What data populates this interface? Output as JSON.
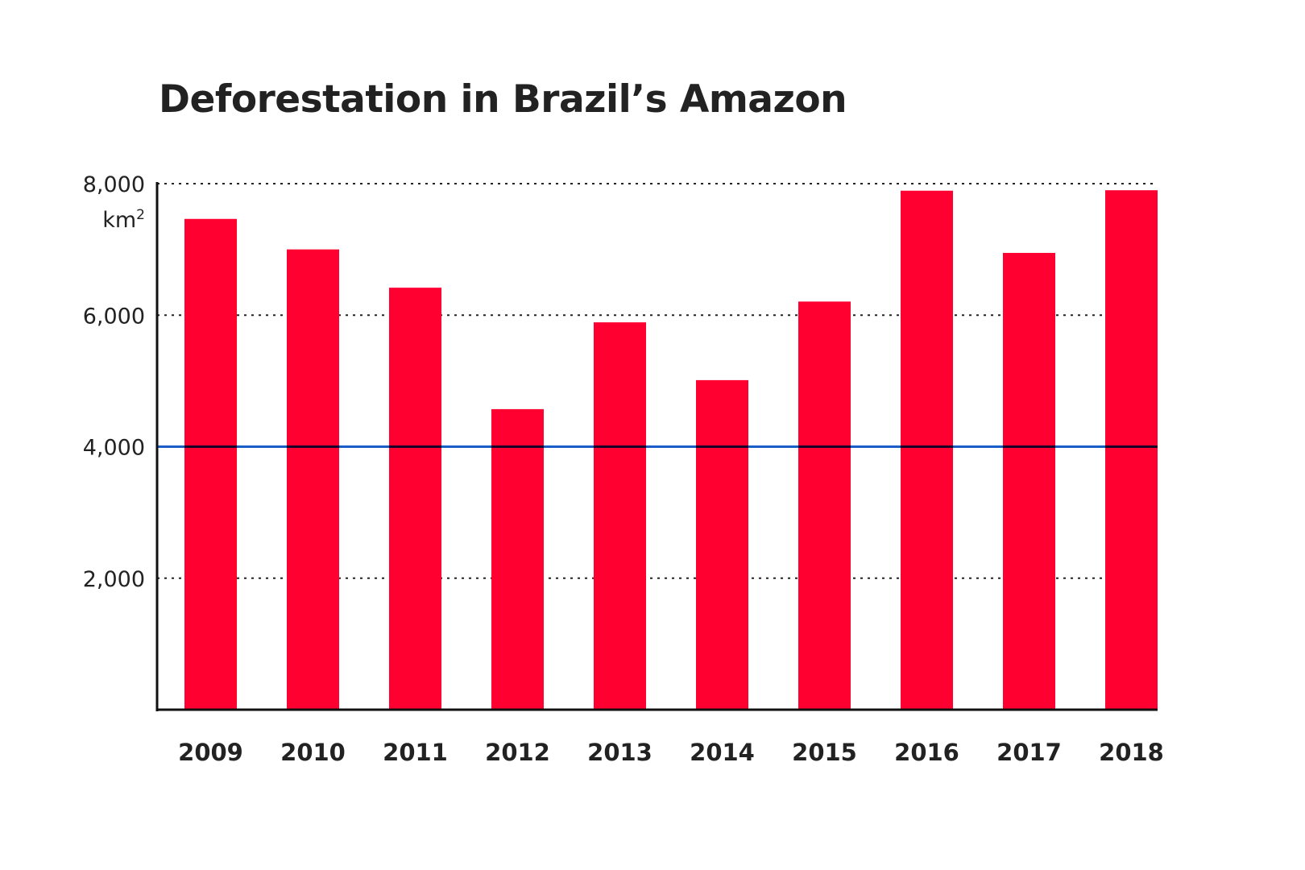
{
  "chart_data": {
    "type": "bar",
    "title": "Deforestation in Brazil’s Amazon",
    "ylabel": "km²",
    "ylabel_base": "km",
    "ylabel_sup": "2",
    "xlabel": "",
    "categories": [
      "2009",
      "2010",
      "2011",
      "2012",
      "2013",
      "2014",
      "2015",
      "2016",
      "2017",
      "2018"
    ],
    "values": [
      7464,
      7000,
      6418,
      4571,
      5891,
      5012,
      6207,
      7893,
      6947,
      7900
    ],
    "ylim": [
      0,
      8000
    ],
    "yticks": [
      2000,
      4000,
      6000,
      8000
    ],
    "ytick_labels": [
      "2,000",
      "4,000",
      "6,000",
      "8,000"
    ],
    "grid": "dotted horizontal",
    "reference_line": {
      "value": 4000,
      "color": "#1a5cc8"
    },
    "colors": {
      "bar": "#ff0030",
      "axis": "#111111",
      "text": "#222222"
    }
  }
}
